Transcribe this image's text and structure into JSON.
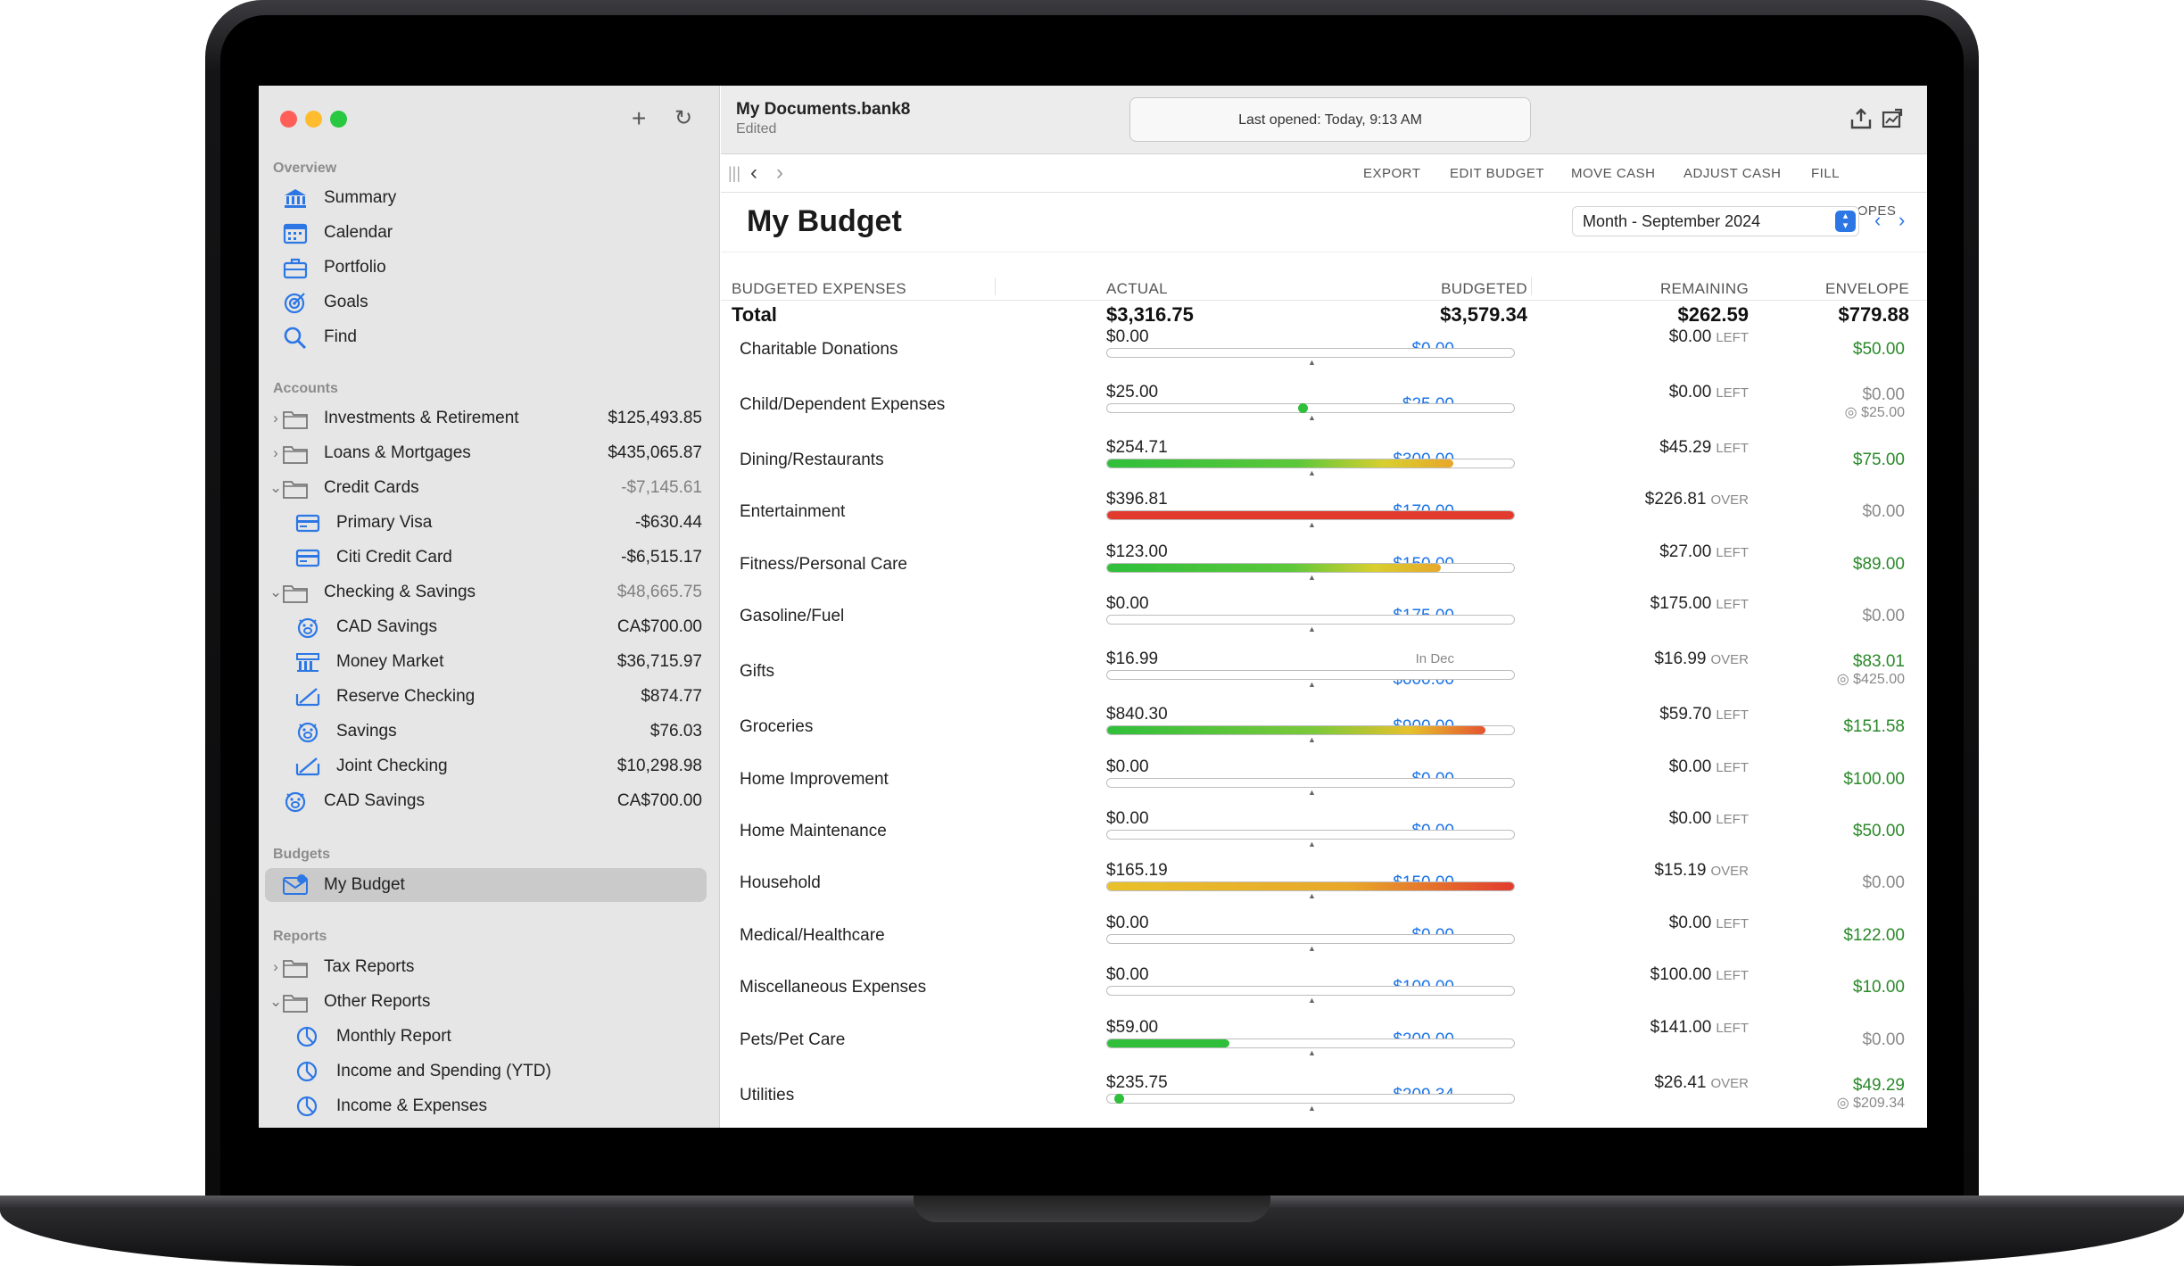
{
  "window": {
    "document_name": "My Documents.bank8",
    "status": "Edited",
    "last_opened": "Last opened: Today, 9:13 AM"
  },
  "sidebar": {
    "overview_label": "Overview",
    "overview": [
      {
        "label": "Summary",
        "icon": "bank-icon"
      },
      {
        "label": "Calendar",
        "icon": "calendar-icon"
      },
      {
        "label": "Portfolio",
        "icon": "briefcase-icon"
      },
      {
        "label": "Goals",
        "icon": "target-icon"
      },
      {
        "label": "Find",
        "icon": "magnifier-icon"
      }
    ],
    "accounts_label": "Accounts",
    "accounts": [
      {
        "label": "Investments & Retirement",
        "amount": "$125,493.85"
      },
      {
        "label": "Loans & Mortgages",
        "amount": "$435,065.87"
      },
      {
        "label": "Credit Cards",
        "amount": "-$7,145.61"
      },
      {
        "label": "Primary Visa",
        "amount": "-$630.44"
      },
      {
        "label": "Citi Credit Card",
        "amount": "-$6,515.17"
      },
      {
        "label": "Checking & Savings",
        "amount": "$48,665.75"
      },
      {
        "label": "CAD Savings",
        "amount": "CA$700.00"
      },
      {
        "label": "Money Market",
        "amount": "$36,715.97"
      },
      {
        "label": "Reserve Checking",
        "amount": "$874.77"
      },
      {
        "label": "Savings",
        "amount": "$76.03"
      },
      {
        "label": "Joint Checking",
        "amount": "$10,298.98"
      },
      {
        "label": "CAD Savings",
        "amount": "CA$700.00"
      }
    ],
    "budgets_label": "Budgets",
    "budgets": [
      {
        "label": "My Budget"
      }
    ],
    "reports_label": "Reports",
    "reports": [
      {
        "label": "Tax Reports"
      },
      {
        "label": "Other Reports"
      },
      {
        "label": "Monthly Report"
      },
      {
        "label": "Income and Spending (YTD)"
      },
      {
        "label": "Income & Expenses"
      }
    ]
  },
  "toolbar": {
    "export": "EXPORT",
    "edit_budget": "EDIT BUDGET",
    "move_cash": "MOVE CASH",
    "adjust_cash": "ADJUST CASH",
    "fill_envelopes": "FILL ENVELOPES"
  },
  "budget": {
    "title": "My Budget",
    "period": "Month - September 2024",
    "columns": {
      "category": "BUDGETED EXPENSES",
      "budgeted": "BUDGETED",
      "actual": "ACTUAL",
      "remaining": "REMAINING",
      "envelope": "ENVELOPE"
    },
    "total": {
      "label": "Total",
      "budgeted": "$3,579.34",
      "actual": "$3,316.75",
      "remaining": "$262.59",
      "envelope": "$779.88"
    },
    "rows": [
      {
        "name": "Charitable Donations",
        "budgeted": "$0.00",
        "actual": "$0.00",
        "remaining": "$0.00",
        "state": "LEFT",
        "progress": 0,
        "bar": "none",
        "envelope": "$50.00",
        "env_color": "green"
      },
      {
        "name": "Child/Dependent Expenses",
        "budgeted": "$25.00",
        "actual": "$25.00",
        "remaining": "$0.00",
        "state": "LEFT",
        "progress": 0.48,
        "bar": "dot",
        "envelope": "$0.00",
        "env_color": "grey",
        "envelope_sub": "◎ $25.00"
      },
      {
        "name": "Dining/Restaurants",
        "budgeted": "$300.00",
        "actual": "$254.71",
        "remaining": "$45.29",
        "state": "LEFT",
        "progress": 0.85,
        "bar": "green-yellow",
        "envelope": "$75.00",
        "env_color": "green"
      },
      {
        "name": "Entertainment",
        "budgeted": "$170.00",
        "actual": "$396.81",
        "remaining": "$226.81",
        "state": "OVER",
        "progress": 1,
        "bar": "red",
        "envelope": "$0.00",
        "env_color": "grey"
      },
      {
        "name": "Fitness/Personal Care",
        "budgeted": "$150.00",
        "actual": "$123.00",
        "remaining": "$27.00",
        "state": "LEFT",
        "progress": 0.82,
        "bar": "green-yellow",
        "envelope": "$89.00",
        "env_color": "green"
      },
      {
        "name": "Gasoline/Fuel",
        "budgeted": "$175.00",
        "actual": "$0.00",
        "remaining": "$175.00",
        "state": "LEFT",
        "progress": 0,
        "bar": "none",
        "envelope": "$0.00",
        "env_color": "grey"
      },
      {
        "name": "Gifts",
        "budgeted_note": "In Dec",
        "budgeted": "$600.00",
        "actual": "$16.99",
        "remaining": "$16.99",
        "state": "OVER",
        "progress": 0,
        "bar": "none",
        "envelope": "$83.01",
        "env_color": "green",
        "envelope_sub": "◎ $425.00"
      },
      {
        "name": "Groceries",
        "budgeted": "$900.00",
        "actual": "$840.30",
        "remaining": "$59.70",
        "state": "LEFT",
        "progress": 0.93,
        "bar": "green-red",
        "envelope": "$151.58",
        "env_color": "green"
      },
      {
        "name": "Home Improvement",
        "budgeted": "$0.00",
        "actual": "$0.00",
        "remaining": "$0.00",
        "state": "LEFT",
        "progress": 0,
        "bar": "none",
        "envelope": "$100.00",
        "env_color": "green"
      },
      {
        "name": "Home Maintenance",
        "budgeted": "$0.00",
        "actual": "$0.00",
        "remaining": "$0.00",
        "state": "LEFT",
        "progress": 0,
        "bar": "none",
        "envelope": "$50.00",
        "env_color": "green"
      },
      {
        "name": "Household",
        "budgeted": "$150.00",
        "actual": "$165.19",
        "remaining": "$15.19",
        "state": "OVER",
        "progress": 1,
        "bar": "yellow-red",
        "envelope": "$0.00",
        "env_color": "grey"
      },
      {
        "name": "Medical/Healthcare",
        "budgeted": "$0.00",
        "actual": "$0.00",
        "remaining": "$0.00",
        "state": "LEFT",
        "progress": 0,
        "bar": "none",
        "envelope": "$122.00",
        "env_color": "green"
      },
      {
        "name": "Miscellaneous Expenses",
        "budgeted": "$100.00",
        "actual": "$0.00",
        "remaining": "$100.00",
        "state": "LEFT",
        "progress": 0,
        "bar": "none",
        "envelope": "$10.00",
        "env_color": "green"
      },
      {
        "name": "Pets/Pet Care",
        "budgeted": "$200.00",
        "actual": "$59.00",
        "remaining": "$141.00",
        "state": "LEFT",
        "progress": 0.3,
        "bar": "green",
        "envelope": "$0.00",
        "env_color": "grey"
      },
      {
        "name": "Utilities",
        "budgeted": "$209.34",
        "actual": "$235.75",
        "remaining": "$26.41",
        "state": "OVER",
        "progress": 0.03,
        "bar": "dot",
        "envelope": "$49.29",
        "env_color": "green",
        "envelope_sub": "◎ $209.34"
      }
    ]
  },
  "colors": {
    "accent": "#1a73e8",
    "green": "#2a8a2a",
    "over": "#e23b2e",
    "fill_green": "#2fbf3b",
    "fill_yellow": "#e8c12a",
    "close": "#ff5f57",
    "minimize": "#febc2e",
    "zoom": "#28c840"
  }
}
